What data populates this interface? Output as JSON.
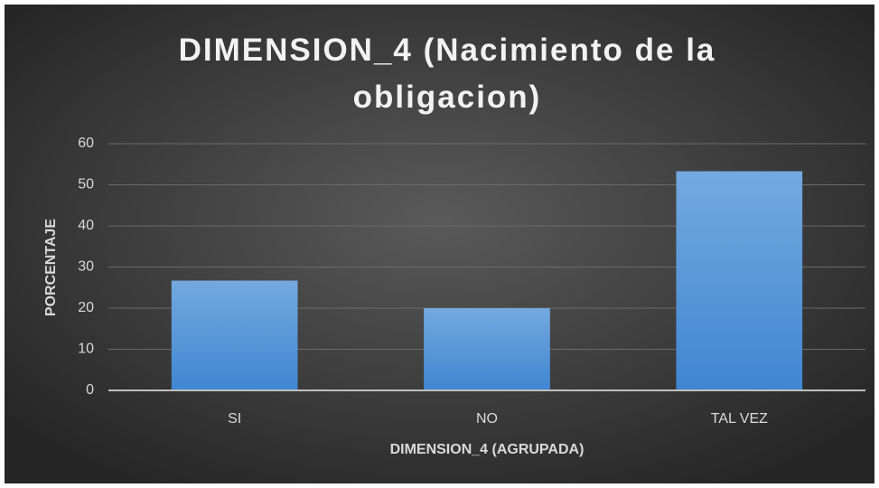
{
  "chart_data": {
    "type": "bar",
    "title": "DIMENSION_4 (Nacimiento de la obligacion)",
    "x_label": "DIMENSION_4 (AGRUPADA)",
    "y_label": "PORCENTAJE",
    "categories": [
      "SI",
      "NO",
      "TAL VEZ"
    ],
    "values": [
      26.7,
      20,
      53.3
    ],
    "color": "#4a90d9",
    "ylim": [
      0,
      60
    ],
    "yticks": [
      0,
      10,
      20,
      30,
      40,
      50,
      60
    ],
    "grid": true
  }
}
